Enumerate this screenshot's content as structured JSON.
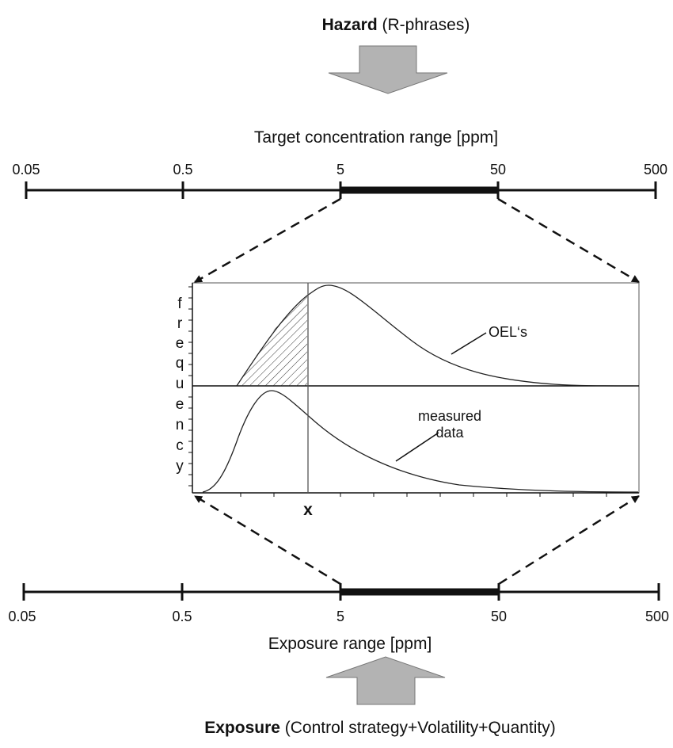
{
  "top": {
    "hazard_bold": "Hazard",
    "hazard_rest": " (R-phrases)",
    "axis_title": "Target concentration range [ppm]",
    "ticks": [
      "0.05",
      "0.5",
      "5",
      "50",
      "500"
    ]
  },
  "plot": {
    "y_letters": [
      "f",
      "r",
      "e",
      "q",
      "u",
      "e",
      "n",
      "c",
      "y"
    ],
    "curve_upper_label": "OEL‘s",
    "curve_lower_label_1": "measured",
    "curve_lower_label_2": "data",
    "x_marker": "x"
  },
  "bottom": {
    "axis_title": "Exposure range [ppm]",
    "ticks": [
      "0.05",
      "0.5",
      "5",
      "50",
      "500"
    ],
    "exposure_bold": "Exposure",
    "exposure_rest": " (Control strategy+Volatility+Quantity)"
  },
  "colors": {
    "arrow_fill": "#b3b3b3",
    "line": "#111111",
    "hatch": "#333333"
  }
}
